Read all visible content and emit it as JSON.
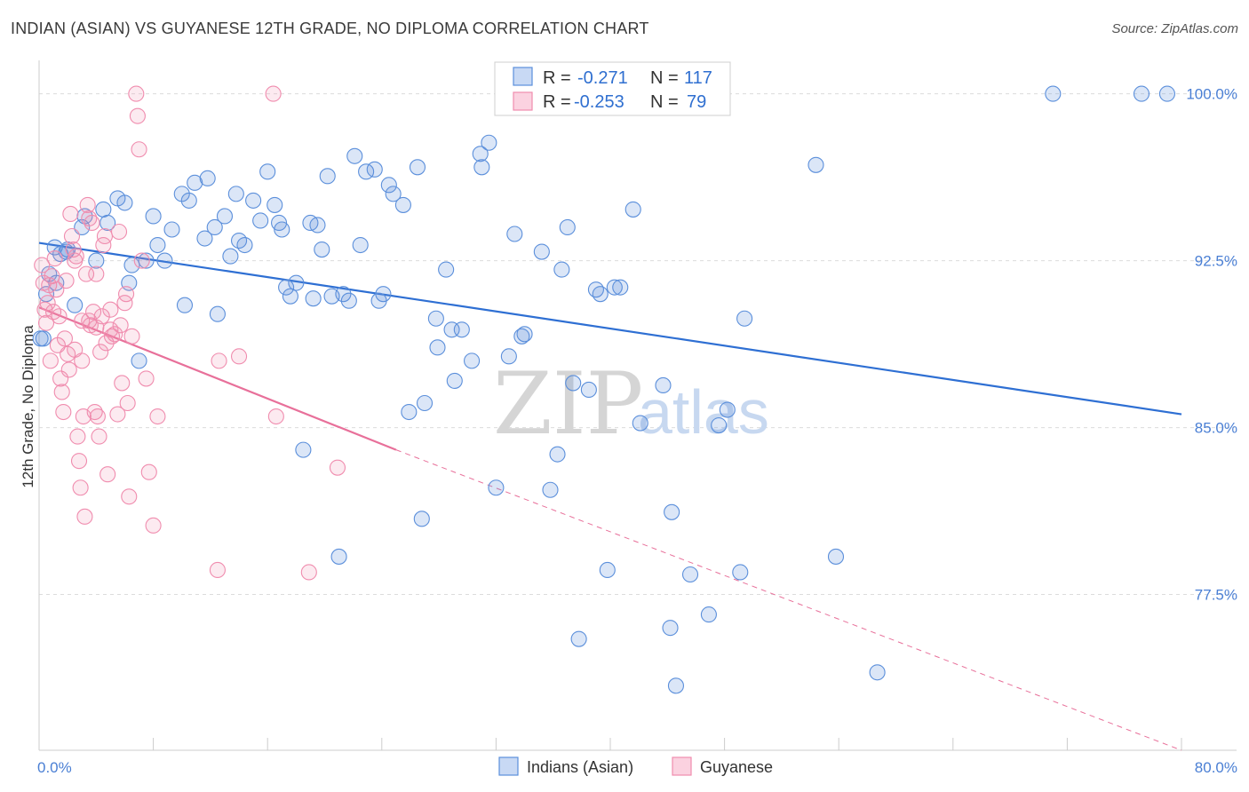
{
  "title": "INDIAN (ASIAN) VS GUYANESE 12TH GRADE, NO DIPLOMA CORRELATION CHART",
  "source": "Source: ZipAtlas.com",
  "watermark": {
    "zip": "ZIP",
    "atlas": "atlas"
  },
  "legend": {
    "rows": [
      {
        "r_label": "R =",
        "r_value": "-0.271",
        "n_label": "N =",
        "n_value": "117",
        "color": "#5b8fdb"
      },
      {
        "r_label": "R =",
        "r_value": "-0.253",
        "n_label": "N =",
        "n_value": "79",
        "color": "#f08cae"
      }
    ]
  },
  "bottom_legend": [
    "Indians (Asian)",
    "Guyanese"
  ],
  "chart_data": {
    "type": "scatter",
    "title": "INDIAN (ASIAN) VS GUYANESE 12TH GRADE, NO DIPLOMA CORRELATION CHART",
    "xlabel": "",
    "ylabel": "12th Grade, No Diploma",
    "xlim": [
      0,
      80
    ],
    "ylim": [
      70.5,
      101.5
    ],
    "x_tick_labels": [
      "0.0%",
      "80.0%"
    ],
    "y_ticks": [
      77.5,
      85.0,
      92.5,
      100.0
    ],
    "y_tick_labels": [
      "77.5%",
      "85.0%",
      "92.5%",
      "100.0%"
    ],
    "grid": "horizontal dashed",
    "series": [
      {
        "name": "Indians (Asian)",
        "color": "#5b8fdb",
        "trend": {
          "x": [
            0,
            80
          ],
          "y": [
            93.3,
            85.6
          ]
        },
        "points": [
          [
            0.3,
            89.0
          ],
          [
            0.5,
            91.0
          ],
          [
            1.2,
            91.5
          ],
          [
            1.5,
            92.8
          ],
          [
            2.0,
            93.0
          ],
          [
            2.5,
            90.5
          ],
          [
            3.0,
            94.0
          ],
          [
            3.2,
            94.5
          ],
          [
            4.0,
            92.5
          ],
          [
            4.5,
            94.8
          ],
          [
            4.8,
            94.2
          ],
          [
            5.5,
            95.3
          ],
          [
            6.0,
            95.1
          ],
          [
            6.3,
            91.5
          ],
          [
            6.5,
            92.3
          ],
          [
            7.0,
            88.0
          ],
          [
            7.5,
            92.5
          ],
          [
            8.0,
            94.5
          ],
          [
            8.3,
            93.2
          ],
          [
            8.8,
            92.5
          ],
          [
            9.3,
            93.9
          ],
          [
            10.0,
            95.5
          ],
          [
            10.2,
            90.5
          ],
          [
            10.5,
            95.2
          ],
          [
            10.9,
            96.0
          ],
          [
            11.6,
            93.5
          ],
          [
            11.8,
            96.2
          ],
          [
            12.3,
            94.0
          ],
          [
            12.5,
            90.1
          ],
          [
            13.0,
            94.5
          ],
          [
            13.4,
            92.7
          ],
          [
            13.8,
            95.5
          ],
          [
            14.0,
            93.4
          ],
          [
            14.4,
            93.2
          ],
          [
            15.0,
            95.2
          ],
          [
            15.5,
            94.3
          ],
          [
            16.0,
            96.5
          ],
          [
            16.5,
            95.0
          ],
          [
            16.8,
            94.2
          ],
          [
            17.0,
            93.9
          ],
          [
            17.3,
            91.3
          ],
          [
            17.6,
            90.9
          ],
          [
            18.0,
            91.5
          ],
          [
            18.5,
            84.0
          ],
          [
            19.0,
            94.2
          ],
          [
            19.2,
            90.8
          ],
          [
            19.5,
            94.1
          ],
          [
            19.8,
            93.0
          ],
          [
            20.2,
            96.3
          ],
          [
            20.5,
            90.9
          ],
          [
            21.0,
            79.2
          ],
          [
            21.3,
            91.0
          ],
          [
            21.7,
            90.7
          ],
          [
            22.1,
            97.2
          ],
          [
            22.5,
            93.2
          ],
          [
            22.9,
            96.5
          ],
          [
            23.5,
            96.6
          ],
          [
            23.8,
            90.7
          ],
          [
            24.1,
            91.0
          ],
          [
            24.5,
            95.9
          ],
          [
            24.8,
            95.5
          ],
          [
            25.5,
            95.0
          ],
          [
            25.9,
            85.7
          ],
          [
            26.5,
            96.7
          ],
          [
            26.8,
            80.9
          ],
          [
            27.0,
            86.1
          ],
          [
            27.8,
            89.9
          ],
          [
            27.9,
            88.6
          ],
          [
            28.5,
            92.1
          ],
          [
            28.9,
            89.4
          ],
          [
            29.1,
            87.1
          ],
          [
            29.6,
            89.4
          ],
          [
            30.3,
            88.0
          ],
          [
            30.9,
            97.3
          ],
          [
            31.0,
            96.7
          ],
          [
            31.5,
            97.8
          ],
          [
            32.0,
            82.3
          ],
          [
            32.5,
            100.0
          ],
          [
            32.9,
            88.2
          ],
          [
            33.3,
            93.7
          ],
          [
            33.8,
            89.1
          ],
          [
            34.0,
            89.2
          ],
          [
            35.2,
            92.9
          ],
          [
            35.8,
            82.2
          ],
          [
            36.3,
            83.8
          ],
          [
            36.6,
            92.1
          ],
          [
            37.0,
            94.0
          ],
          [
            37.4,
            87.0
          ],
          [
            37.8,
            75.5
          ],
          [
            38.5,
            86.7
          ],
          [
            39.0,
            91.2
          ],
          [
            39.3,
            91.0
          ],
          [
            39.8,
            78.6
          ],
          [
            40.3,
            91.3
          ],
          [
            40.7,
            91.3
          ],
          [
            41.6,
            94.8
          ],
          [
            42.1,
            85.2
          ],
          [
            43.7,
            86.9
          ],
          [
            44.2,
            76.0
          ],
          [
            44.3,
            81.2
          ],
          [
            44.6,
            73.4
          ],
          [
            45.6,
            78.4
          ],
          [
            46.9,
            76.6
          ],
          [
            47.6,
            85.1
          ],
          [
            48.2,
            85.8
          ],
          [
            49.1,
            78.5
          ],
          [
            49.4,
            89.9
          ],
          [
            54.4,
            96.8
          ],
          [
            55.8,
            79.2
          ],
          [
            58.7,
            74.0
          ],
          [
            71.0,
            100.0
          ],
          [
            77.2,
            100.0
          ],
          [
            79.0,
            100.0
          ],
          [
            0.1,
            89.0
          ],
          [
            0.7,
            91.9
          ],
          [
            1.1,
            93.1
          ],
          [
            1.9,
            92.9
          ]
        ]
      },
      {
        "name": "Guyanese",
        "color": "#f08cae",
        "trend": {
          "x": [
            0,
            25
          ],
          "y": [
            90.4,
            84.0
          ]
        },
        "trend_extrapolated": {
          "x": [
            25,
            80
          ],
          "y": [
            84.0,
            70.5
          ]
        },
        "points": [
          [
            0.2,
            92.3
          ],
          [
            0.4,
            90.3
          ],
          [
            0.5,
            89.7
          ],
          [
            0.7,
            91.4
          ],
          [
            0.8,
            88.0
          ],
          [
            0.9,
            91.8
          ],
          [
            1.0,
            90.2
          ],
          [
            1.1,
            92.6
          ],
          [
            1.3,
            88.7
          ],
          [
            1.5,
            87.2
          ],
          [
            1.6,
            86.6
          ],
          [
            1.7,
            85.7
          ],
          [
            1.8,
            89.0
          ],
          [
            1.9,
            91.6
          ],
          [
            2.0,
            88.3
          ],
          [
            2.1,
            87.6
          ],
          [
            2.2,
            94.6
          ],
          [
            2.3,
            93.6
          ],
          [
            2.4,
            93.0
          ],
          [
            2.5,
            88.5
          ],
          [
            2.6,
            92.7
          ],
          [
            2.7,
            84.6
          ],
          [
            2.8,
            83.5
          ],
          [
            2.9,
            82.3
          ],
          [
            3.0,
            88.0
          ],
          [
            3.1,
            85.5
          ],
          [
            3.2,
            81.0
          ],
          [
            3.3,
            91.9
          ],
          [
            3.4,
            95.0
          ],
          [
            3.5,
            89.8
          ],
          [
            3.6,
            89.6
          ],
          [
            3.7,
            94.2
          ],
          [
            3.8,
            90.2
          ],
          [
            3.9,
            85.7
          ],
          [
            4.0,
            91.9
          ],
          [
            4.1,
            85.5
          ],
          [
            4.2,
            84.6
          ],
          [
            4.3,
            88.4
          ],
          [
            4.4,
            90.0
          ],
          [
            4.5,
            93.2
          ],
          [
            4.6,
            93.6
          ],
          [
            4.7,
            88.8
          ],
          [
            4.8,
            82.9
          ],
          [
            5.0,
            90.3
          ],
          [
            5.1,
            89.1
          ],
          [
            5.3,
            89.2
          ],
          [
            5.5,
            85.6
          ],
          [
            5.6,
            93.8
          ],
          [
            5.7,
            89.6
          ],
          [
            5.8,
            87.0
          ],
          [
            6.0,
            90.6
          ],
          [
            6.1,
            91.0
          ],
          [
            6.2,
            86.1
          ],
          [
            6.3,
            81.9
          ],
          [
            6.5,
            89.1
          ],
          [
            6.8,
            100.0
          ],
          [
            6.9,
            99.0
          ],
          [
            7.0,
            97.5
          ],
          [
            7.2,
            92.5
          ],
          [
            7.5,
            87.2
          ],
          [
            7.7,
            83.0
          ],
          [
            8.0,
            80.6
          ],
          [
            8.3,
            85.5
          ],
          [
            12.5,
            78.6
          ],
          [
            12.6,
            88.0
          ],
          [
            14.0,
            88.2
          ],
          [
            16.4,
            100.0
          ],
          [
            16.6,
            85.5
          ],
          [
            18.9,
            78.5
          ],
          [
            20.9,
            83.2
          ],
          [
            0.3,
            91.5
          ],
          [
            0.6,
            90.6
          ],
          [
            1.2,
            91.2
          ],
          [
            1.4,
            90.0
          ],
          [
            2.5,
            92.5
          ],
          [
            3.0,
            89.8
          ],
          [
            3.5,
            94.4
          ],
          [
            4.0,
            89.5
          ],
          [
            5.0,
            89.4
          ]
        ]
      }
    ]
  }
}
